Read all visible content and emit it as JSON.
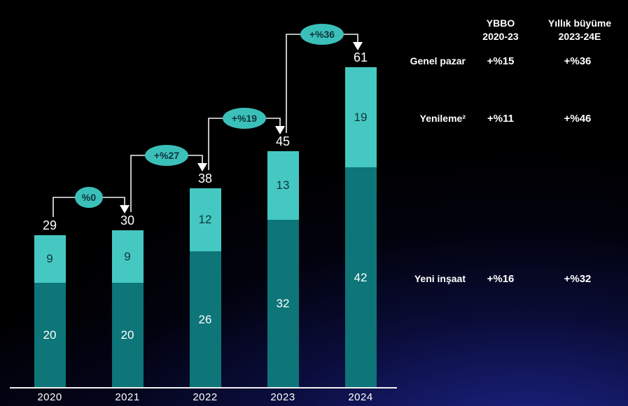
{
  "chart_data": {
    "type": "bar",
    "stacked": true,
    "categories": [
      "2020",
      "2021",
      "2022",
      "2023",
      "2024"
    ],
    "series": [
      {
        "name": "Yeni inşaat",
        "values": [
          20,
          20,
          26,
          32,
          42
        ]
      },
      {
        "name": "Yenileme",
        "values": [
          9,
          9,
          12,
          13,
          19
        ]
      }
    ],
    "totals": [
      29,
      30,
      38,
      45,
      61
    ],
    "growth_badges": [
      {
        "label": "%0",
        "from": "2020",
        "to": "2021"
      },
      {
        "label": "+%27",
        "from": "2021",
        "to": "2022"
      },
      {
        "label": "+%19",
        "from": "2022",
        "to": "2023"
      },
      {
        "label": "+%36",
        "from": "2023",
        "to": "2024"
      }
    ],
    "ylim": [
      0,
      65
    ],
    "grid": false,
    "legend_position": "none"
  },
  "side_table": {
    "columns": [
      {
        "line1": "YBBO",
        "line2": "2020-23"
      },
      {
        "line1": "Yıllık büyüme",
        "line2": "2023-24E"
      }
    ],
    "rows": [
      {
        "label": "Genel pazar",
        "ybbo_2020_23": "+%15",
        "yillik_buyume_2023_24e": "+%36"
      },
      {
        "label": "Yenileme²",
        "ybbo_2020_23": "+%11",
        "yillik_buyume_2023_24e": "+%46"
      },
      {
        "label": "Yeni inşaat",
        "ybbo_2020_23": "+%16",
        "yillik_buyume_2023_24e": "+%32"
      }
    ]
  },
  "colors": {
    "new_construction": "#0e7579",
    "renovation": "#45c8c1",
    "badge_fill": "#3bc0b9",
    "badge_text": "#0f323b",
    "text": "#ffffff",
    "axis": "#f2f2f2"
  }
}
